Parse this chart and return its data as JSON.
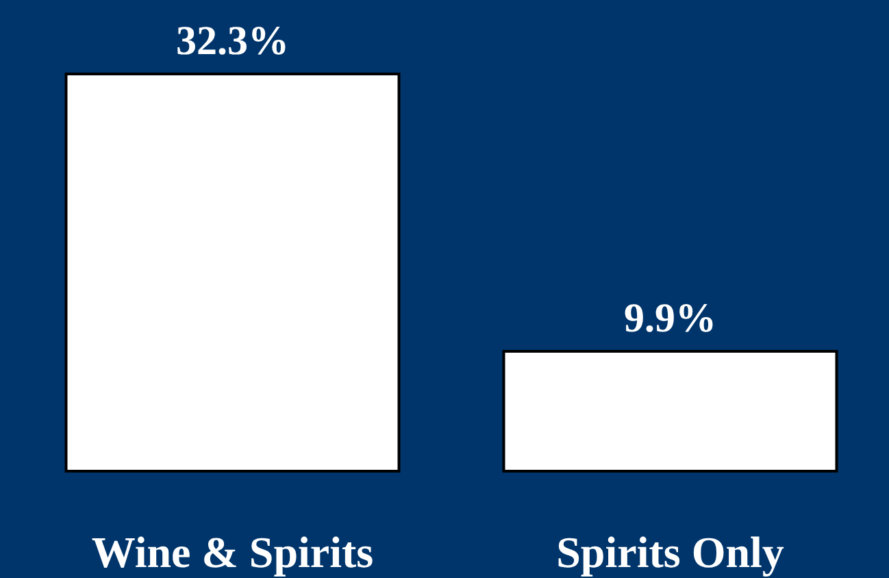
{
  "chart_data": {
    "type": "bar",
    "categories": [
      "Wine & Spirits",
      "Spirits Only"
    ],
    "values": [
      32.3,
      9.9
    ],
    "value_labels": [
      "32.3%",
      "9.9%"
    ],
    "color": "#ffffff"
  }
}
